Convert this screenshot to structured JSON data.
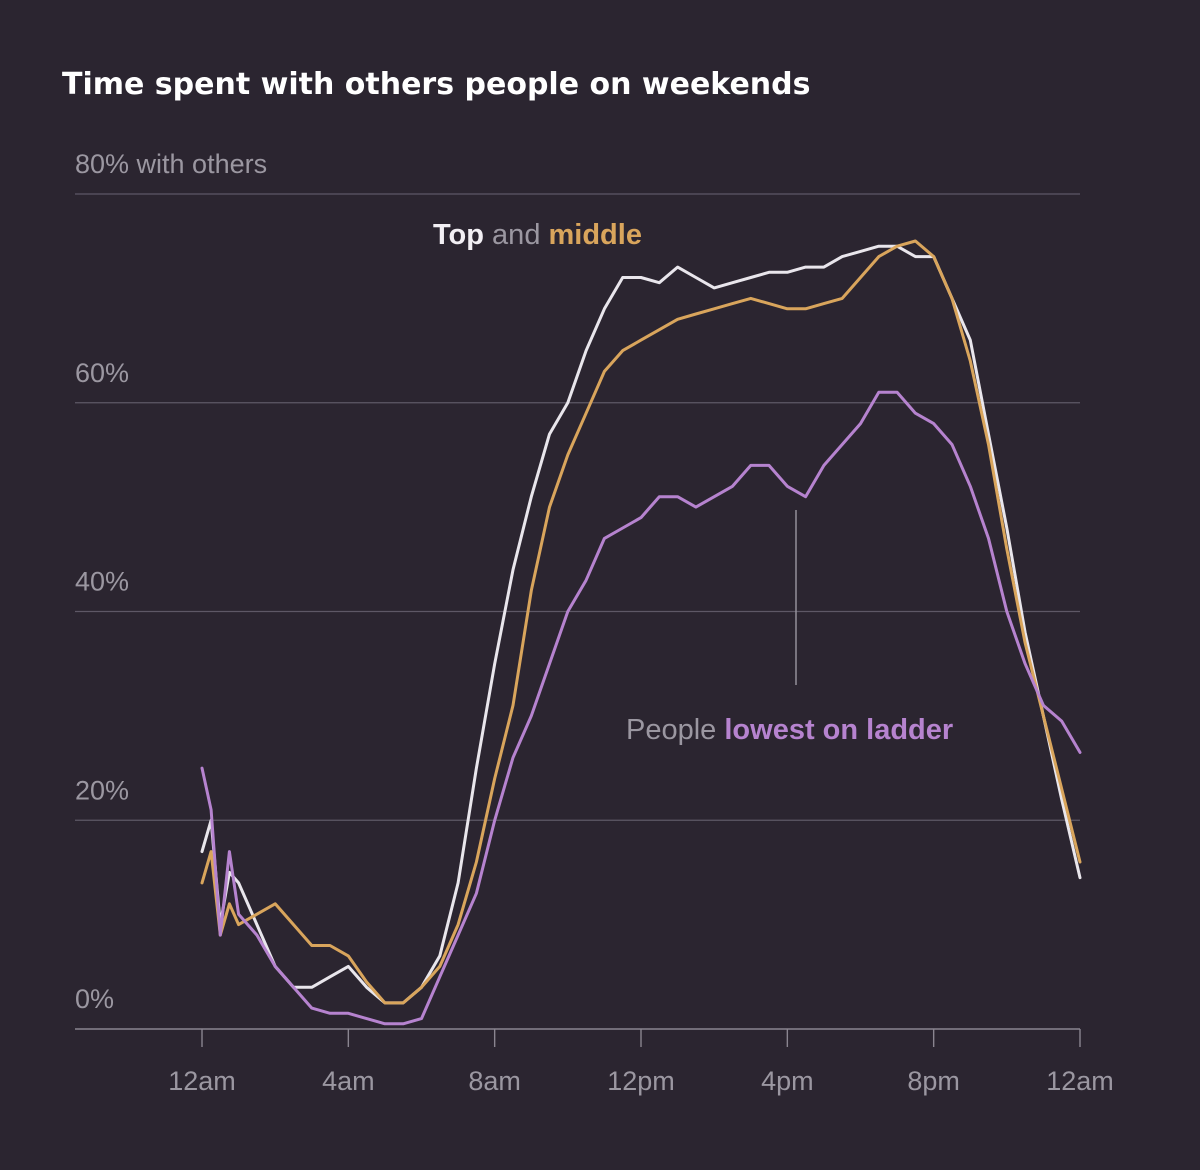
{
  "chart_data": {
    "type": "line",
    "title": "Time spent with others people on weekends",
    "ylabel_top": "80% with others",
    "ylim": [
      0,
      80
    ],
    "yticks": [
      {
        "value": 0,
        "label": "0%"
      },
      {
        "value": 20,
        "label": "20%"
      },
      {
        "value": 40,
        "label": "40%"
      },
      {
        "value": 60,
        "label": "60%"
      },
      {
        "value": 80,
        "label": "80% with others"
      }
    ],
    "x_unit": "hours since midnight",
    "xlim": [
      -3.5,
      24
    ],
    "xticks": [
      {
        "value": 0,
        "label": "12am"
      },
      {
        "value": 4,
        "label": "4am"
      },
      {
        "value": 8,
        "label": "8am"
      },
      {
        "value": 12,
        "label": "12pm"
      },
      {
        "value": 16,
        "label": "4pm"
      },
      {
        "value": 20,
        "label": "8pm"
      },
      {
        "value": 24,
        "label": "12am"
      }
    ],
    "grid": true,
    "annotations": {
      "top_middle": {
        "part1": "Top",
        "part2": " and ",
        "part3": "middle"
      },
      "lowest": {
        "part1": "People ",
        "part2": "lowest on ladder"
      }
    },
    "series": [
      {
        "name": "Top",
        "color": "#e9e6ec",
        "x": [
          0,
          0.25,
          0.5,
          0.75,
          1,
          1.5,
          2,
          2.5,
          3,
          3.5,
          4,
          4.5,
          5,
          5.5,
          6,
          6.5,
          7,
          7.5,
          8,
          8.5,
          9,
          9.5,
          10,
          10.5,
          11,
          11.5,
          12,
          12.5,
          13,
          13.5,
          14,
          14.5,
          15,
          15.5,
          16,
          16.5,
          17,
          17.5,
          18,
          18.5,
          19,
          19.5,
          20,
          20.5,
          21,
          21.5,
          22,
          22.5,
          23,
          23.5,
          24
        ],
        "values": [
          17,
          20,
          10,
          15,
          14,
          10,
          6,
          4,
          4,
          5,
          6,
          4,
          2.5,
          2.5,
          4,
          7,
          14,
          25,
          35,
          44,
          51,
          57,
          60,
          65,
          69,
          72,
          72,
          71.5,
          73,
          72,
          71,
          71.5,
          72,
          72.5,
          72.5,
          73,
          73,
          74,
          74.5,
          75,
          75,
          74,
          74,
          70,
          66,
          57,
          48,
          38,
          30,
          22,
          14.5
        ]
      },
      {
        "name": "middle",
        "color": "#d9a55c",
        "x": [
          0,
          0.25,
          0.5,
          0.75,
          1,
          1.5,
          2,
          2.5,
          3,
          3.5,
          4,
          4.5,
          5,
          5.5,
          6,
          6.5,
          7,
          7.5,
          8,
          8.5,
          9,
          9.5,
          10,
          10.5,
          11,
          11.5,
          12,
          12.5,
          13,
          13.5,
          14,
          14.5,
          15,
          15.5,
          16,
          16.5,
          17,
          17.5,
          18,
          18.5,
          19,
          19.5,
          20,
          20.5,
          21,
          21.5,
          22,
          22.5,
          23,
          23.5,
          24
        ],
        "values": [
          14,
          17,
          9,
          12,
          10,
          11,
          12,
          10,
          8,
          8,
          7,
          4.5,
          2.5,
          2.5,
          4,
          6,
          10,
          16,
          24,
          31,
          42,
          50,
          55,
          59,
          63,
          65,
          66,
          67,
          68,
          68.5,
          69,
          69.5,
          70,
          69.5,
          69,
          69,
          69.5,
          70,
          72,
          74,
          75,
          75.5,
          74,
          70,
          64,
          56,
          46,
          37,
          30,
          23,
          16
        ]
      },
      {
        "name": "lowest on ladder",
        "color": "#b683cf",
        "x": [
          0,
          0.25,
          0.5,
          0.75,
          1,
          1.5,
          2,
          2.5,
          3,
          3.5,
          4,
          4.5,
          5,
          5.5,
          6,
          6.5,
          7,
          7.5,
          8,
          8.5,
          9,
          9.5,
          10,
          10.5,
          11,
          11.5,
          12,
          12.5,
          13,
          13.5,
          14,
          14.5,
          15,
          15.5,
          16,
          16.5,
          17,
          17.5,
          18,
          18.5,
          19,
          19.5,
          20,
          20.5,
          21,
          21.5,
          22,
          22.5,
          23,
          23.5,
          24
        ],
        "values": [
          25,
          21,
          9,
          17,
          11,
          9,
          6,
          4,
          2,
          1.5,
          1.5,
          1,
          0.5,
          0.5,
          1,
          5,
          9,
          13,
          20,
          26,
          30,
          35,
          40,
          43,
          47,
          48,
          49,
          51,
          51,
          50,
          51,
          52,
          54,
          54,
          52,
          51,
          54,
          56,
          58,
          61,
          61,
          59,
          58,
          56,
          52,
          47,
          40,
          35,
          31,
          29.5,
          26.5
        ]
      }
    ]
  }
}
